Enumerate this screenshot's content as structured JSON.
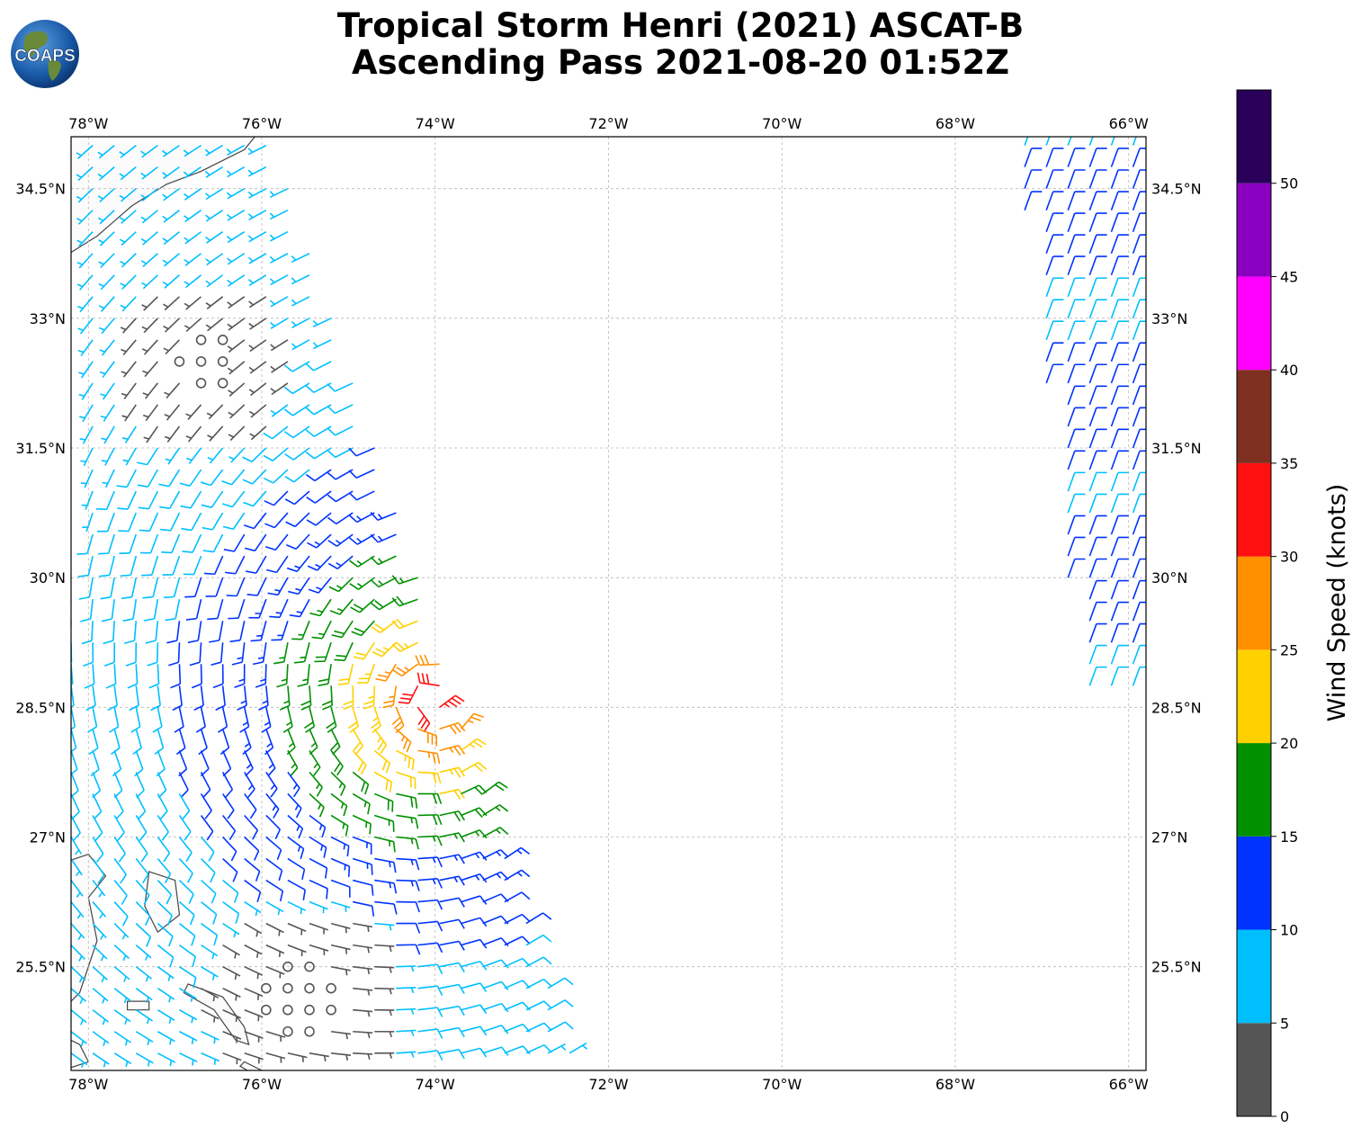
{
  "title": {
    "line1": "Tropical Storm Henri (2021) ASCAT-B",
    "line2": "Ascending Pass 2021-08-20 01:52Z"
  },
  "logo": {
    "text": "COAPS",
    "icon": "globe-logo"
  },
  "map": {
    "lon_range": [
      -78.2,
      -65.8
    ],
    "lat_range": [
      24.3,
      35.1
    ],
    "lon_ticks": [
      "78°W",
      "76°W",
      "74°W",
      "72°W",
      "70°W",
      "68°W",
      "66°W"
    ],
    "lon_tick_values": [
      -78,
      -76,
      -74,
      -72,
      -70,
      -68,
      -66
    ],
    "lat_ticks": [
      "34.5°N",
      "33°N",
      "31.5°N",
      "30°N",
      "28.5°N",
      "27°N",
      "25.5°N"
    ],
    "lat_tick_values": [
      34.5,
      33,
      31.5,
      30,
      28.5,
      27,
      25.5
    ],
    "grid": true,
    "land_color": "#fbfbfb",
    "coast_color": "#444444"
  },
  "colorbar": {
    "label": "Wind Speed (knots)",
    "ticks": [
      "0",
      "5",
      "10",
      "15",
      "20",
      "25",
      "30",
      "35",
      "40",
      "45",
      "50"
    ],
    "bins": [
      {
        "min": 0,
        "max": 5,
        "color": "#555555"
      },
      {
        "min": 5,
        "max": 10,
        "color": "#00bfff"
      },
      {
        "min": 10,
        "max": 15,
        "color": "#0033ff"
      },
      {
        "min": 15,
        "max": 20,
        "color": "#009000"
      },
      {
        "min": 20,
        "max": 25,
        "color": "#ffd000"
      },
      {
        "min": 25,
        "max": 30,
        "color": "#ff9000"
      },
      {
        "min": 30,
        "max": 35,
        "color": "#ff1010"
      },
      {
        "min": 35,
        "max": 40,
        "color": "#803020"
      },
      {
        "min": 40,
        "max": 45,
        "color": "#ff00ff"
      },
      {
        "min": 45,
        "max": 50,
        "color": "#8a00c0"
      },
      {
        "min": 50,
        "max": 55,
        "color": "#2a005a"
      }
    ]
  },
  "storm_center": {
    "lon": -74.0,
    "lat": 28.6
  }
}
